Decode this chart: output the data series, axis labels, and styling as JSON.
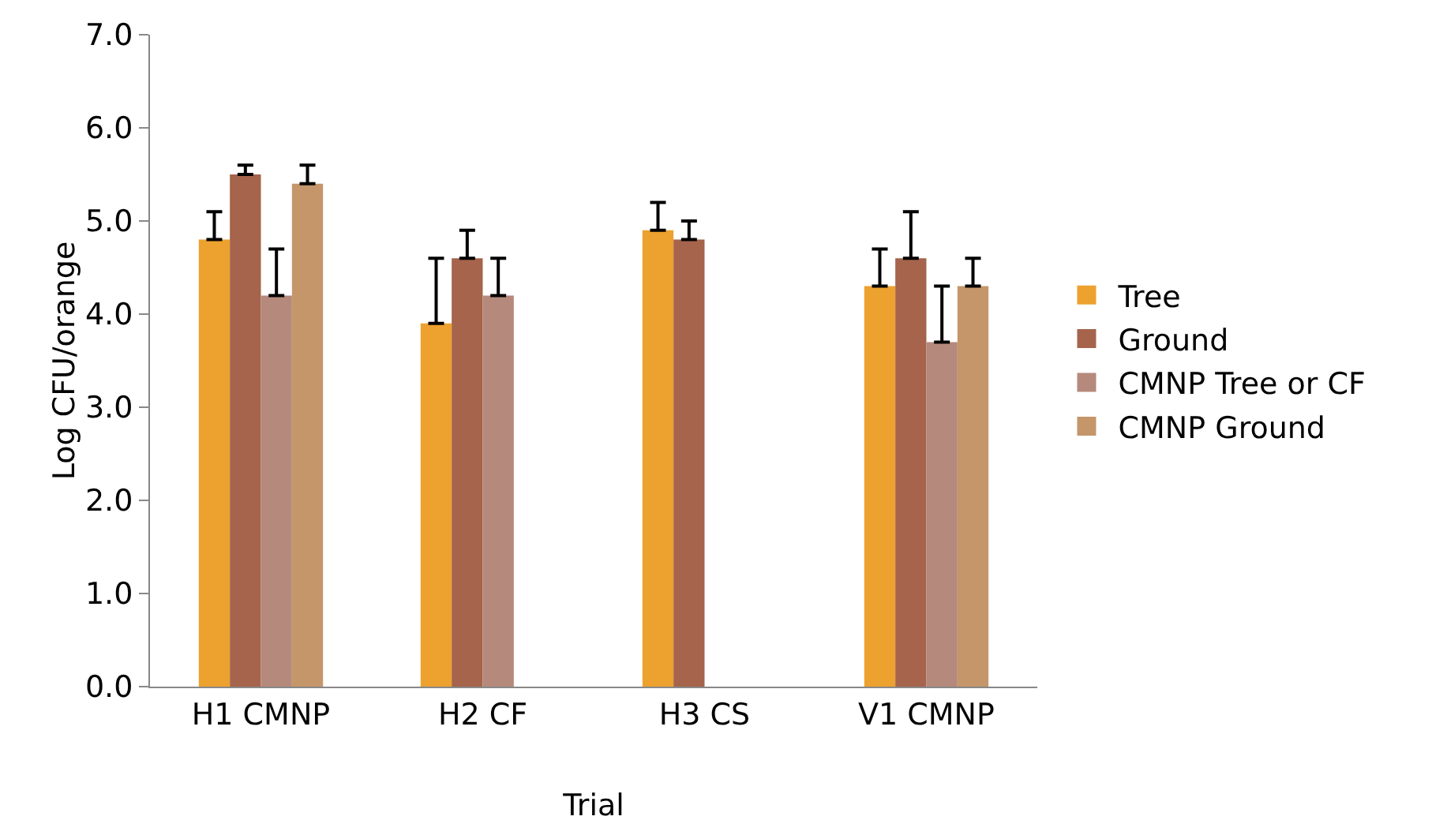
{
  "chart_data": {
    "type": "bar",
    "xlabel": "Trial",
    "ylabel": "Log CFU/orange",
    "categories": [
      "H1 CMNP",
      "H2 CF",
      "H3 CS",
      "V1 CMNP"
    ],
    "series": [
      {
        "name": "Tree",
        "color": "#eda12e",
        "values": [
          4.8,
          3.9,
          4.9,
          4.3
        ],
        "errors": [
          [
            4.8,
            5.1
          ],
          [
            3.9,
            4.6
          ],
          [
            4.9,
            5.2
          ],
          [
            4.3,
            4.7
          ]
        ]
      },
      {
        "name": "Ground",
        "color": "#a5644b",
        "values": [
          5.5,
          4.6,
          4.8,
          4.6
        ],
        "errors": [
          [
            5.5,
            5.6
          ],
          [
            4.6,
            4.9
          ],
          [
            4.8,
            5.0
          ],
          [
            4.6,
            5.1
          ]
        ]
      },
      {
        "name": "CMNP Tree or CF",
        "color": "#b5897c",
        "values": [
          4.2,
          4.2,
          null,
          3.7
        ],
        "errors": [
          [
            4.2,
            4.7
          ],
          [
            4.2,
            4.6
          ],
          null,
          [
            3.7,
            4.3
          ]
        ]
      },
      {
        "name": "CMNP Ground",
        "color": "#c4966a",
        "values": [
          5.4,
          null,
          null,
          4.3
        ],
        "errors": [
          [
            5.4,
            5.6
          ],
          null,
          null,
          [
            4.3,
            4.6
          ]
        ]
      }
    ],
    "ylim": [
      0,
      7
    ],
    "yticks": [
      {
        "value": 0,
        "label": "0.0"
      },
      {
        "value": 1,
        "label": "1.0"
      },
      {
        "value": 2,
        "label": "2.0"
      },
      {
        "value": 3,
        "label": "3.0"
      },
      {
        "value": 4,
        "label": "4.0"
      },
      {
        "value": 5,
        "label": "5.0"
      },
      {
        "value": 6,
        "label": "6.0"
      },
      {
        "value": 7,
        "label": "7.0"
      }
    ],
    "grid": false,
    "legend": "right"
  }
}
